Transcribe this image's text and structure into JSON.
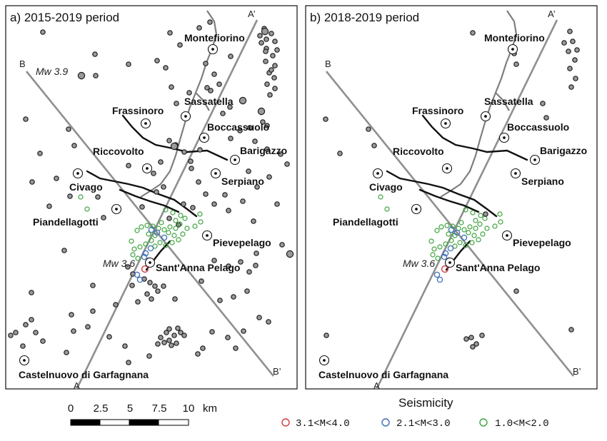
{
  "panels": [
    {
      "title": "a) 2015-2019 period",
      "historic_mw": "Mw 3.9",
      "recent_mw": "Mw 3.6"
    },
    {
      "title": "b) 2018-2019 period",
      "historic_mw": "",
      "recent_mw": "Mw 3.6"
    }
  ],
  "sections": {
    "a_start": "A",
    "a_end": "A’",
    "b_start": "B",
    "b_end": "B’"
  },
  "towns": [
    {
      "name": "Montefiorino"
    },
    {
      "name": "Sassatella"
    },
    {
      "name": "Frassinoro"
    },
    {
      "name": "Boccassuolo"
    },
    {
      "name": "Riccovolto"
    },
    {
      "name": "Barigazzo"
    },
    {
      "name": "Civago"
    },
    {
      "name": "Serpiano"
    },
    {
      "name": "Piandellagotti"
    },
    {
      "name": "Pievepelago"
    },
    {
      "name": "Sant'Anna Pelago"
    },
    {
      "name": "Castelnuovo di Garfagnana"
    }
  ],
  "scale_bar": {
    "ticks": [
      "0",
      "2.5",
      "5",
      "7.5",
      "10"
    ],
    "unit": "km"
  },
  "legend": {
    "title": "Seismicity",
    "items": [
      {
        "label": "3.1<M<4.0",
        "color": "#d83a3a"
      },
      {
        "label": "2.1<M<3.0",
        "color": "#3d6fb8"
      },
      {
        "label": "1.0<M<2.0",
        "color": "#3da33d"
      }
    ]
  }
}
